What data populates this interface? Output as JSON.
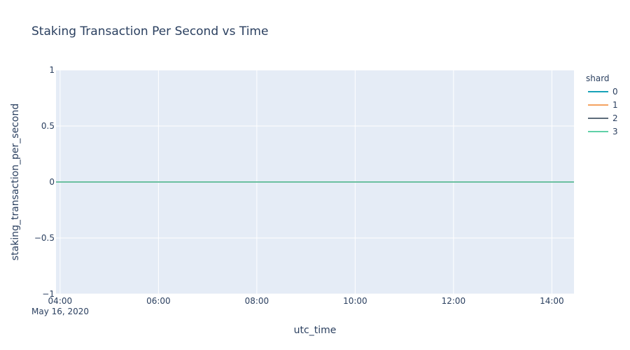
{
  "chart_data": {
    "type": "line",
    "title": "Staking Transaction Per Second vs Time",
    "xlabel": "utc_time",
    "ylabel": "staking_transaction_per_second",
    "x_ticks": [
      "04:00",
      "06:00",
      "08:00",
      "10:00",
      "12:00",
      "14:00"
    ],
    "x_tick_date": "May 16, 2020",
    "x_range": [
      "2020-05-16 03:55",
      "2020-05-16 14:27"
    ],
    "ylim": [
      -1,
      1
    ],
    "y_ticks": [
      {
        "value": 1,
        "label": "1"
      },
      {
        "value": 0.5,
        "label": "0.5"
      },
      {
        "value": 0,
        "label": "0"
      },
      {
        "value": -0.5,
        "label": "−0.5"
      },
      {
        "value": -1,
        "label": "−1"
      }
    ],
    "grid": true,
    "legend": {
      "title": "shard",
      "placement": "right"
    },
    "series": [
      {
        "name": "0",
        "color": "#17a2b8",
        "x": [
          "2020-05-16 03:55",
          "2020-05-16 14:27"
        ],
        "y": [
          0,
          0
        ]
      },
      {
        "name": "1",
        "color": "#f4a261",
        "x": [
          "2020-05-16 03:55",
          "2020-05-16 14:27"
        ],
        "y": [
          0,
          0
        ]
      },
      {
        "name": "2",
        "color": "#5c6b7a",
        "x": [
          "2020-05-16 03:55",
          "2020-05-16 14:27"
        ],
        "y": [
          0,
          0
        ]
      },
      {
        "name": "3",
        "color": "#5fd0a8",
        "x": [
          "2020-05-16 03:55",
          "2020-05-16 14:27"
        ],
        "y": [
          0,
          0
        ]
      }
    ]
  }
}
